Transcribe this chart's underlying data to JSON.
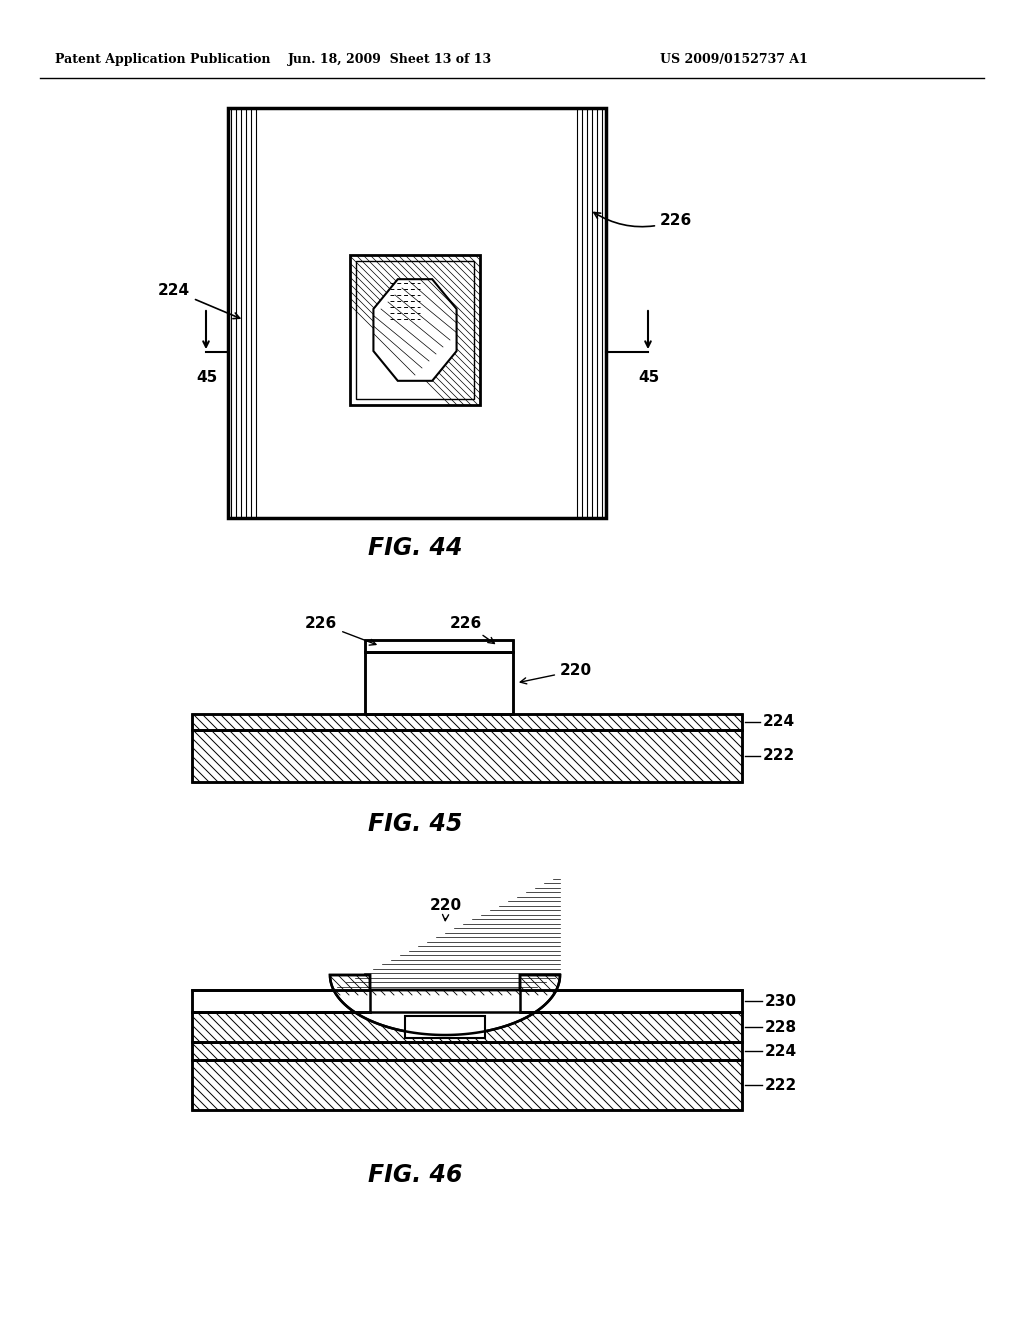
{
  "header_left": "Patent Application Publication",
  "header_mid": "Jun. 18, 2009  Sheet 13 of 13",
  "header_right": "US 2009/0152737 A1",
  "fig44_label": "FIG. 44",
  "fig45_label": "FIG. 45",
  "fig46_label": "FIG. 46",
  "bg_color": "#ffffff",
  "line_color": "#000000"
}
